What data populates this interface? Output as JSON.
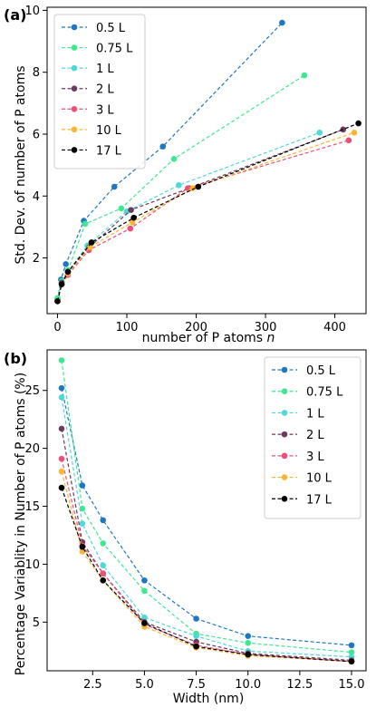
{
  "chart_data": [
    {
      "type": "line",
      "panel_label": "(a)",
      "xlabel": "number of P atoms n",
      "ylabel": "Std. Dev. of number of P atoms",
      "xlim": [
        -15,
        445
      ],
      "ylim": [
        0.2,
        10.1
      ],
      "xticks": [
        0,
        100,
        200,
        300,
        400
      ],
      "yticks": [
        2,
        4,
        6,
        8,
        10
      ],
      "grid": false,
      "legend_position": "top-left",
      "series": [
        {
          "name": "0.5 L",
          "color": "#1f77c4",
          "x": [
            0,
            5,
            12,
            38,
            82,
            152,
            324
          ],
          "y": [
            0.65,
            1.3,
            1.8,
            3.2,
            4.3,
            5.6,
            9.6
          ]
        },
        {
          "name": "0.75 L",
          "color": "#3ee890",
          "x": [
            0,
            6,
            15,
            40,
            92,
            168,
            356
          ],
          "y": [
            0.7,
            1.25,
            1.6,
            3.1,
            3.6,
            5.2,
            7.9
          ]
        },
        {
          "name": "1 L",
          "color": "#4fd8d8",
          "x": [
            0,
            6,
            15,
            43,
            100,
            175,
            378
          ],
          "y": [
            0.6,
            1.2,
            1.55,
            2.4,
            3.5,
            4.35,
            6.05
          ]
        },
        {
          "name": "2 L",
          "color": "#6b3a5e",
          "x": [
            0,
            6,
            15,
            46,
            106,
            190,
            412
          ],
          "y": [
            0.6,
            1.2,
            1.55,
            2.35,
            3.55,
            4.25,
            6.15
          ]
        },
        {
          "name": "3 L",
          "color": "#ef4e78",
          "x": [
            0,
            6,
            15,
            45,
            105,
            188,
            420
          ],
          "y": [
            0.6,
            1.15,
            1.45,
            2.25,
            2.95,
            4.25,
            5.8
          ]
        },
        {
          "name": "10 L",
          "color": "#f7b734",
          "x": [
            0,
            6,
            15,
            47,
            108,
            195,
            428
          ],
          "y": [
            0.6,
            1.15,
            1.5,
            2.35,
            3.15,
            4.25,
            6.05
          ]
        },
        {
          "name": "17 L",
          "color": "#000000",
          "x": [
            0,
            6,
            15,
            49,
            110,
            203,
            434
          ],
          "y": [
            0.6,
            1.15,
            1.55,
            2.5,
            3.3,
            4.3,
            6.35
          ]
        }
      ]
    },
    {
      "type": "line",
      "panel_label": "(b)",
      "xlabel": "Width (nm)",
      "ylabel": "Percentage Variablity in Number of P atoms (%)",
      "xlim": [
        0.3,
        15.7
      ],
      "ylim": [
        0.8,
        28.5
      ],
      "xticks": [
        2.5,
        5.0,
        7.5,
        10.0,
        12.5,
        15.0
      ],
      "xtick_labels": [
        "2.5",
        "5.0",
        "7.5",
        "10.0",
        "12.5",
        "15.0"
      ],
      "yticks": [
        5,
        10,
        15,
        20,
        25
      ],
      "grid": false,
      "legend_position": "top-right",
      "series": [
        {
          "name": "0.5 L",
          "color": "#1f77c4",
          "x": [
            1,
            2,
            3,
            5,
            7.5,
            10,
            15
          ],
          "y": [
            25.2,
            16.8,
            13.8,
            8.6,
            5.3,
            3.8,
            3.0
          ]
        },
        {
          "name": "0.75 L",
          "color": "#3ee890",
          "x": [
            1,
            2,
            3,
            5,
            7.5,
            10,
            15
          ],
          "y": [
            27.6,
            14.8,
            11.8,
            7.7,
            4.0,
            3.2,
            2.4
          ]
        },
        {
          "name": "1 L",
          "color": "#4fd8d8",
          "x": [
            1,
            2,
            3,
            5,
            7.5,
            10,
            15
          ],
          "y": [
            24.4,
            13.5,
            9.9,
            5.4,
            3.8,
            2.5,
            2.0
          ]
        },
        {
          "name": "2 L",
          "color": "#6b3a5e",
          "x": [
            1,
            2,
            3,
            5,
            7.5,
            10,
            15
          ],
          "y": [
            21.7,
            11.9,
            9.2,
            5.0,
            3.3,
            2.3,
            1.7
          ]
        },
        {
          "name": "3 L",
          "color": "#ef4e78",
          "x": [
            1,
            2,
            3,
            5,
            7.5,
            10,
            15
          ],
          "y": [
            19.1,
            11.6,
            9.2,
            4.8,
            3.0,
            2.2,
            1.6
          ]
        },
        {
          "name": "10 L",
          "color": "#f7b734",
          "x": [
            1,
            2,
            3,
            5,
            7.5,
            10,
            15
          ],
          "y": [
            18.0,
            11.1,
            8.6,
            4.6,
            2.8,
            2.1,
            1.6
          ]
        },
        {
          "name": "17 L",
          "color": "#000000",
          "x": [
            1,
            2,
            3,
            5,
            7.5,
            10,
            15
          ],
          "y": [
            16.6,
            11.5,
            8.6,
            4.9,
            2.9,
            2.2,
            1.6
          ]
        }
      ]
    }
  ]
}
